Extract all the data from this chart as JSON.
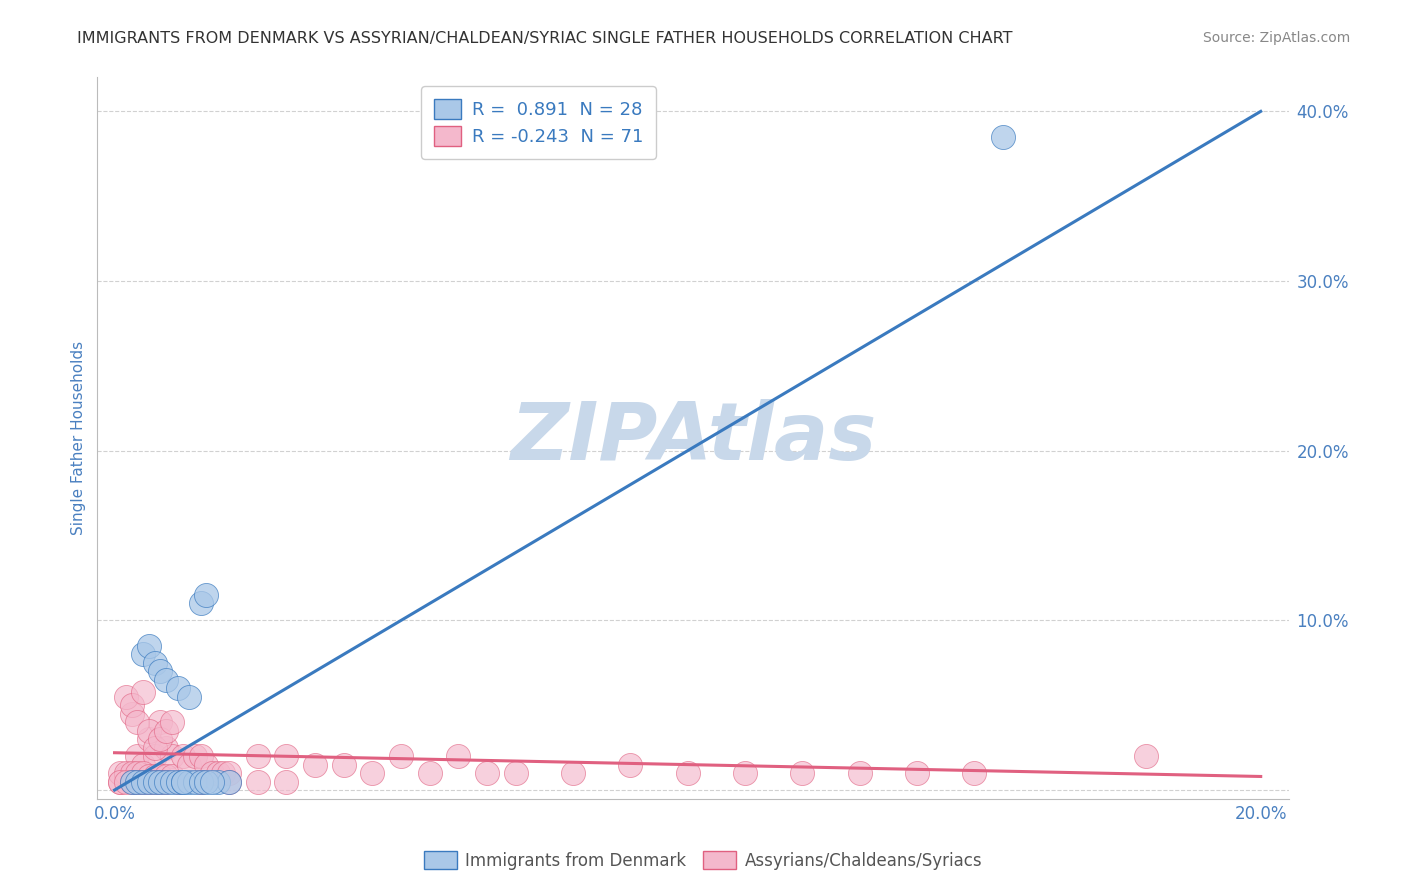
{
  "title": "IMMIGRANTS FROM DENMARK VS ASSYRIAN/CHALDEAN/SYRIAC SINGLE FATHER HOUSEHOLDS CORRELATION CHART",
  "source": "Source: ZipAtlas.com",
  "ylabel_label": "Single Father Households",
  "yticks": [
    0.0,
    0.1,
    0.2,
    0.3,
    0.4
  ],
  "ytick_labels": [
    "",
    "10.0%",
    "20.0%",
    "30.0%",
    "40.0%"
  ],
  "xticks": [
    0.0,
    0.05,
    0.1,
    0.15,
    0.2
  ],
  "xtick_labels": [
    "0.0%",
    "",
    "",
    "",
    "20.0%"
  ],
  "xlim": [
    -0.003,
    0.205
  ],
  "ylim": [
    -0.005,
    0.42
  ],
  "legend_r1": "R =  0.891  N = 28",
  "legend_r2": "R = -0.243  N = 71",
  "legend_label1": "Immigrants from Denmark",
  "legend_label2": "Assyrians/Chaldeans/Syriacs",
  "blue_color": "#aac8e8",
  "blue_line_color": "#3a7abf",
  "pink_color": "#f4b8cc",
  "pink_line_color": "#e06080",
  "watermark": "ZIPAtlas",
  "watermark_color": "#c8d8ea",
  "title_color": "#333333",
  "axis_label_color": "#4a80c0",
  "tick_label_color": "#4a80c0",
  "grid_color": "#cccccc",
  "background_color": "#ffffff",
  "blue_scatter_x": [
    0.003,
    0.004,
    0.005,
    0.006,
    0.007,
    0.008,
    0.009,
    0.01,
    0.011,
    0.012,
    0.013,
    0.014,
    0.005,
    0.006,
    0.007,
    0.008,
    0.009,
    0.011,
    0.013,
    0.015,
    0.016,
    0.018,
    0.02,
    0.012,
    0.015,
    0.016,
    0.017,
    0.155
  ],
  "blue_scatter_y": [
    0.005,
    0.005,
    0.005,
    0.005,
    0.005,
    0.005,
    0.005,
    0.005,
    0.005,
    0.005,
    0.005,
    0.005,
    0.08,
    0.085,
    0.075,
    0.07,
    0.065,
    0.06,
    0.055,
    0.11,
    0.115,
    0.005,
    0.005,
    0.005,
    0.005,
    0.005,
    0.005,
    0.385
  ],
  "pink_scatter_x": [
    0.001,
    0.002,
    0.003,
    0.004,
    0.005,
    0.006,
    0.007,
    0.008,
    0.009,
    0.01,
    0.002,
    0.003,
    0.004,
    0.005,
    0.006,
    0.007,
    0.008,
    0.009,
    0.01,
    0.011,
    0.001,
    0.002,
    0.003,
    0.004,
    0.005,
    0.006,
    0.007,
    0.008,
    0.009,
    0.01,
    0.012,
    0.013,
    0.014,
    0.015,
    0.016,
    0.017,
    0.018,
    0.019,
    0.02,
    0.025,
    0.03,
    0.035,
    0.04,
    0.045,
    0.05,
    0.055,
    0.06,
    0.065,
    0.07,
    0.08,
    0.09,
    0.1,
    0.11,
    0.12,
    0.13,
    0.14,
    0.15,
    0.001,
    0.002,
    0.003,
    0.004,
    0.005,
    0.006,
    0.007,
    0.008,
    0.009,
    0.015,
    0.02,
    0.025,
    0.03,
    0.18
  ],
  "pink_scatter_y": [
    0.005,
    0.008,
    0.045,
    0.02,
    0.015,
    0.03,
    0.02,
    0.04,
    0.025,
    0.02,
    0.055,
    0.05,
    0.04,
    0.058,
    0.035,
    0.025,
    0.03,
    0.035,
    0.04,
    0.005,
    0.01,
    0.01,
    0.01,
    0.01,
    0.01,
    0.008,
    0.008,
    0.008,
    0.008,
    0.008,
    0.02,
    0.015,
    0.02,
    0.02,
    0.015,
    0.01,
    0.01,
    0.01,
    0.01,
    0.02,
    0.02,
    0.015,
    0.015,
    0.01,
    0.02,
    0.01,
    0.02,
    0.01,
    0.01,
    0.01,
    0.015,
    0.01,
    0.01,
    0.01,
    0.01,
    0.01,
    0.01,
    0.005,
    0.005,
    0.005,
    0.005,
    0.005,
    0.005,
    0.005,
    0.005,
    0.005,
    0.005,
    0.005,
    0.005,
    0.005,
    0.02
  ],
  "blue_line_x": [
    0.0,
    0.2
  ],
  "blue_line_y": [
    0.0,
    0.4
  ],
  "pink_line_x": [
    0.0,
    0.2
  ],
  "pink_line_y": [
    0.022,
    0.008
  ]
}
